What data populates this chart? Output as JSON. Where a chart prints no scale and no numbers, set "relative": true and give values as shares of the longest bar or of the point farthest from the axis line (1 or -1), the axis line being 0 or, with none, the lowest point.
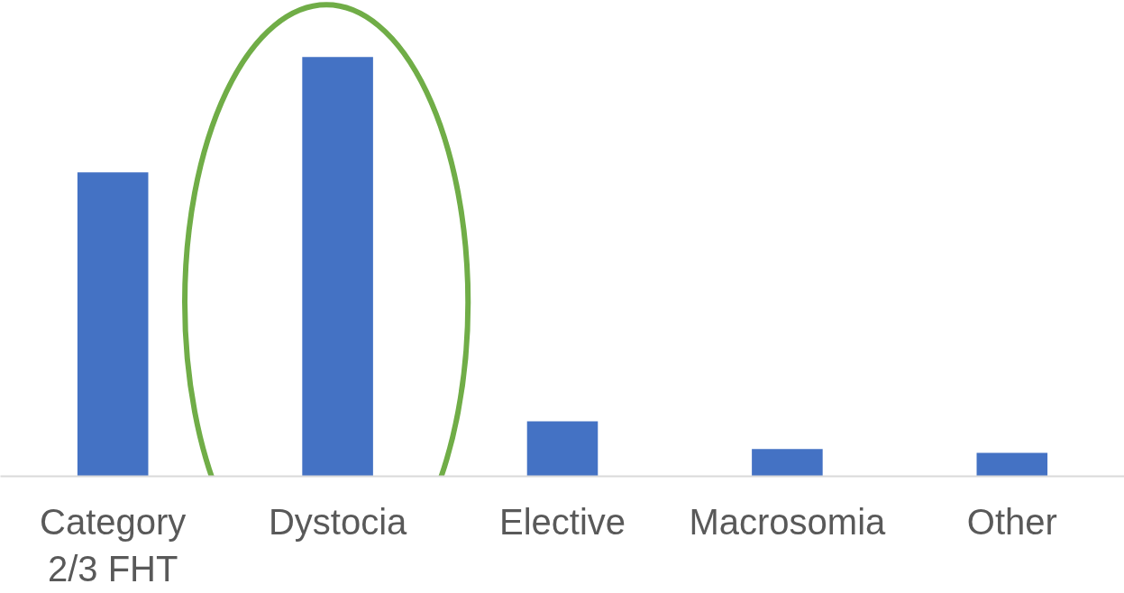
{
  "chart_data": {
    "type": "bar",
    "relative": true,
    "categories": [
      "Category 2/3 FHT",
      "Dystocia",
      "Elective",
      "Macrosomia",
      "Other"
    ],
    "values": [
      0.725,
      1,
      0.131,
      0.065,
      0.056
    ],
    "color": "#4472c4",
    "grid": false
  }
}
